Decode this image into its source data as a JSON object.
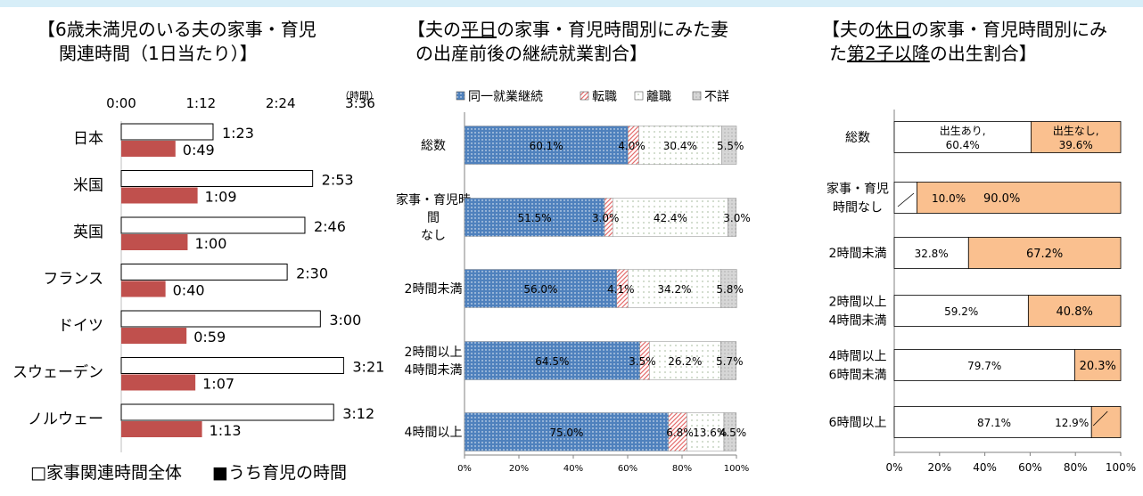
{
  "colors": {
    "total": "#ffffff",
    "childcare": "#c0504d",
    "same_job": "#4f81bd",
    "change_job": "#e46c6c",
    "orange": "#fac08f",
    "gray": "#d0d0d0",
    "accent_bar": "#d7eef8"
  },
  "left": {
    "title_line1": "【6歳未満児のいる夫の家事・育児",
    "title_line2": "関連時間（1日当たり）】",
    "unit": "（時間）",
    "ticks": [
      "0:00",
      "1:12",
      "2:24",
      "3:36"
    ],
    "legend_total": "□家事関連時間全体",
    "legend_child": "■うち育児の時間",
    "chart_data": {
      "type": "bar",
      "orientation": "horizontal",
      "xlim_minutes": [
        0,
        216
      ],
      "categories": [
        "日本",
        "米国",
        "英国",
        "フランス",
        "ドイツ",
        "スウェーデン",
        "ノルウェー"
      ],
      "series": [
        {
          "name": "家事関連時間全体",
          "values": [
            83,
            173,
            166,
            150,
            180,
            201,
            192
          ],
          "labels": [
            "1:23",
            "2:53",
            "2:46",
            "2:30",
            "3:00",
            "3:21",
            "3:12"
          ]
        },
        {
          "name": "うち育児の時間",
          "values": [
            49,
            69,
            60,
            40,
            59,
            67,
            73
          ],
          "labels": [
            "0:49",
            "1:09",
            "1:00",
            "0:40",
            "0:59",
            "1:07",
            "1:13"
          ]
        }
      ]
    }
  },
  "middle": {
    "title_line1": "【夫の平日の家事・育児時間別にみた妻",
    "title_line2": "の出産前後の継続就業割合】",
    "legend": [
      {
        "label": "同一就業継続"
      },
      {
        "label": "転職"
      },
      {
        "label": "離職"
      },
      {
        "label": "不詳"
      }
    ],
    "ticks": [
      "0%",
      "20%",
      "40%",
      "60%",
      "80%",
      "100%"
    ],
    "chart_data": {
      "type": "bar",
      "stacked": true,
      "orientation": "horizontal",
      "categories": [
        [
          "総数"
        ],
        [
          "家事・育児時",
          "間",
          "なし"
        ],
        [
          "2時間未満"
        ],
        [
          "2時間以上",
          "4時間未満"
        ],
        [
          "4時間以上"
        ]
      ],
      "series": [
        {
          "name": "同一就業継続",
          "values": [
            60.1,
            51.5,
            56.0,
            64.5,
            75.0
          ],
          "labels": [
            "60.1%",
            "51.5%",
            "56.0%",
            "64.5%",
            "75.0%"
          ]
        },
        {
          "name": "転職",
          "values": [
            4.0,
            3.0,
            4.1,
            3.5,
            6.8
          ],
          "labels": [
            "4.0%",
            "3.0%",
            "4.1%",
            "3.5%",
            "6.8%"
          ]
        },
        {
          "name": "離職",
          "values": [
            30.4,
            42.4,
            34.2,
            26.2,
            13.6
          ],
          "labels": [
            "30.4%",
            "42.4%",
            "34.2%",
            "26.2%",
            "13.6%"
          ]
        },
        {
          "name": "不詳",
          "values": [
            5.5,
            3.0,
            5.8,
            5.7,
            4.5
          ],
          "labels": [
            "5.5%",
            "3.0%",
            "5.8%",
            "5.7%",
            "4.5%"
          ]
        }
      ]
    }
  },
  "right": {
    "title_line1": "【夫の休日の家事・育児時間別にみ",
    "title_line2": "た第2子以降の出生割合】",
    "ticks": [
      "0%",
      "20%",
      "40%",
      "60%",
      "80%",
      "100%"
    ],
    "chart_data": {
      "type": "bar",
      "stacked": true,
      "orientation": "horizontal",
      "categories": [
        [
          "総数"
        ],
        [
          "家事・育児",
          "時間なし"
        ],
        [
          "2時間未満"
        ],
        [
          "2時間以上",
          "4時間未満"
        ],
        [
          "4時間以上",
          "6時間未満"
        ],
        [
          "6時間以上"
        ]
      ],
      "series": [
        {
          "name": "出生あり",
          "values": [
            60.4,
            10.0,
            32.8,
            59.2,
            79.7,
            87.1
          ],
          "labels": [
            "出生あり,|60.4%",
            "10.0%",
            "32.8%",
            "59.2%",
            "79.7%",
            "87.1%"
          ]
        },
        {
          "name": "出生なし",
          "values": [
            39.6,
            90.0,
            67.2,
            40.8,
            20.3,
            12.9
          ],
          "labels": [
            "出生なし,|39.6%",
            "90.0%",
            "67.2%",
            "40.8%",
            "20.3%",
            "12.9%"
          ]
        }
      ]
    }
  }
}
